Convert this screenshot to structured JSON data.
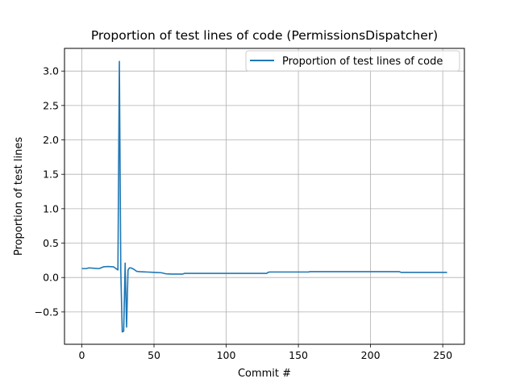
{
  "chart_data": {
    "type": "line",
    "title": "Proportion of test lines of code (PermissionsDispatcher)",
    "xlabel": "Commit #",
    "ylabel": "Proportion of test lines",
    "xlim": [
      -12,
      265
    ],
    "ylim": [
      -0.97,
      3.33
    ],
    "xticks": [
      0,
      50,
      100,
      150,
      200,
      250
    ],
    "yticks": [
      -0.5,
      0.0,
      0.5,
      1.0,
      1.5,
      2.0,
      2.5,
      3.0
    ],
    "xtick_labels": [
      "0",
      "50",
      "100",
      "150",
      "200",
      "250"
    ],
    "ytick_labels": [
      "−0.5",
      "0.0",
      "0.5",
      "1.0",
      "1.5",
      "2.0",
      "2.5",
      "3.0"
    ],
    "grid": true,
    "legend": "upper right",
    "series": [
      {
        "name": "Proportion of test lines of code",
        "color": "#1f77b4",
        "x": [
          0,
          3,
          5,
          8,
          12,
          15,
          18,
          22,
          25,
          26,
          27,
          28,
          29,
          30,
          31,
          32,
          33,
          34,
          36,
          38,
          40,
          45,
          50,
          55,
          58,
          62,
          70,
          71,
          90,
          110,
          128,
          129,
          130,
          140,
          150,
          157,
          158,
          170,
          180,
          200,
          220,
          221,
          240,
          253
        ],
        "y": [
          0.13,
          0.13,
          0.14,
          0.135,
          0.13,
          0.155,
          0.16,
          0.155,
          0.11,
          3.14,
          0.09,
          -0.79,
          -0.78,
          0.21,
          -0.72,
          0.11,
          0.14,
          0.14,
          0.12,
          0.09,
          0.085,
          0.08,
          0.075,
          0.07,
          0.055,
          0.05,
          0.05,
          0.06,
          0.06,
          0.06,
          0.06,
          0.075,
          0.08,
          0.08,
          0.08,
          0.08,
          0.085,
          0.085,
          0.085,
          0.085,
          0.085,
          0.075,
          0.075,
          0.075
        ]
      }
    ]
  }
}
